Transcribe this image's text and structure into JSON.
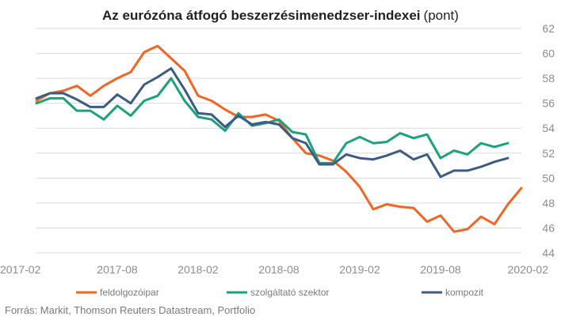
{
  "chart_data": {
    "type": "line",
    "title_main": "Az eurózóna átfogó beszerzésimenedzser-indexei",
    "title_unit": "(pont)",
    "x": [
      "2017-02",
      "2017-03",
      "2017-04",
      "2017-05",
      "2017-06",
      "2017-07",
      "2017-08",
      "2017-09",
      "2017-10",
      "2017-11",
      "2017-12",
      "2018-01",
      "2018-02",
      "2018-03",
      "2018-04",
      "2018-05",
      "2018-06",
      "2018-07",
      "2018-08",
      "2018-09",
      "2018-10",
      "2018-11",
      "2018-12",
      "2019-01",
      "2019-02",
      "2019-03",
      "2019-04",
      "2019-05",
      "2019-06",
      "2019-07",
      "2019-08",
      "2019-09",
      "2019-10",
      "2019-11",
      "2019-12",
      "2020-01",
      "2020-02"
    ],
    "x_tick_labels": [
      "2017-02",
      "2017-08",
      "2018-02",
      "2018-08",
      "2019-02",
      "2019-08",
      "2020-02"
    ],
    "ylim": [
      44,
      62
    ],
    "y_ticks": [
      44,
      46,
      48,
      50,
      52,
      54,
      56,
      58,
      60,
      62
    ],
    "y_axis_position": "right",
    "grid": "horizontal",
    "legend_position": "bottom",
    "series": [
      {
        "name": "feldolgozóipar",
        "color": "#f26522",
        "values": [
          56.2,
          56.8,
          57.0,
          57.4,
          56.6,
          57.4,
          58.0,
          58.5,
          60.1,
          60.6,
          59.6,
          58.6,
          56.6,
          56.2,
          55.5,
          54.9,
          54.9,
          55.1,
          54.6,
          53.2,
          52.0,
          51.8,
          51.4,
          50.5,
          49.3,
          47.5,
          47.9,
          47.7,
          47.6,
          46.5,
          47.0,
          45.7,
          45.9,
          46.9,
          46.3,
          47.9,
          49.2
        ]
      },
      {
        "name": "szolgáltató szektor",
        "color": "#1aa37a",
        "values": [
          56.0,
          56.4,
          56.4,
          55.4,
          55.4,
          54.7,
          55.8,
          55.0,
          56.2,
          56.6,
          58.0,
          56.2,
          54.9,
          54.7,
          53.8,
          55.2,
          54.2,
          54.4,
          54.7,
          53.7,
          53.5,
          51.2,
          51.2,
          52.8,
          53.3,
          52.8,
          52.9,
          53.6,
          53.2,
          53.5,
          51.6,
          52.2,
          51.9,
          52.8,
          52.5,
          52.8,
          null
        ]
      },
      {
        "name": "kompozit",
        "color": "#3b5b86",
        "values": [
          56.4,
          56.8,
          56.8,
          56.3,
          55.7,
          55.7,
          56.7,
          56.0,
          57.5,
          58.1,
          58.8,
          57.1,
          55.2,
          55.1,
          54.1,
          55.0,
          54.3,
          54.5,
          54.3,
          53.2,
          52.8,
          51.1,
          51.1,
          51.9,
          51.6,
          51.5,
          51.8,
          52.2,
          51.5,
          51.9,
          50.1,
          50.6,
          50.6,
          50.9,
          51.3,
          51.6,
          null
        ]
      }
    ]
  },
  "source_text": "Forrás: Markit, Thomson Reuters Datastream, Portfolio"
}
